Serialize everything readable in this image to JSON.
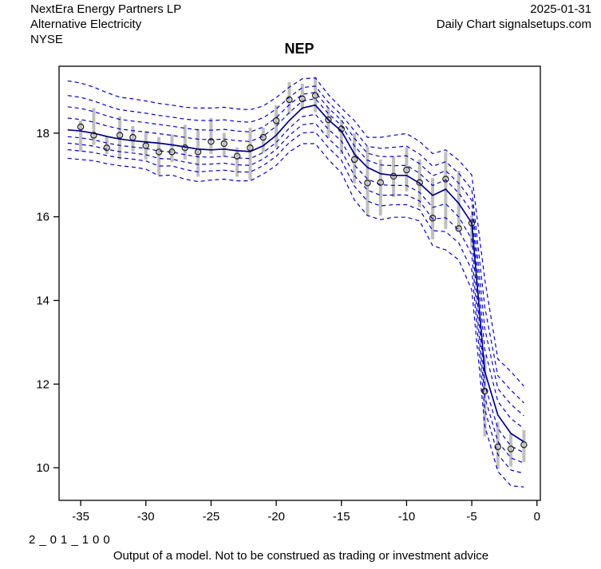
{
  "header": {
    "company": "NextEra Energy Partners LP",
    "industry": "Alternative Electricity",
    "exchange": "NYSE",
    "date": "2025-01-31",
    "source": "Daily Chart signalsetups.com"
  },
  "title": "NEP",
  "footer": {
    "model_id": "2_01_100",
    "disclaimer": "Output of a model. Not to be construed as trading or investment advice"
  },
  "chart_data": {
    "type": "line",
    "title": "NEP",
    "xlabel": "",
    "ylabel": "",
    "x_ticks": [
      -35,
      -30,
      -25,
      -20,
      -15,
      -10,
      -5,
      0
    ],
    "y_ticks": [
      10,
      12,
      14,
      16,
      18
    ],
    "xlim": [
      -36.66,
      0.26
    ],
    "ylim": [
      9.22,
      19.6
    ],
    "grid": false,
    "legend_position": "none",
    "description": "Observed daily prices (open circles with gray high-low bars) plus model median (solid navy line) and eight dashed blue decile band lines (4 above, 4 below the median).",
    "band_fractions": [
      0.24,
      0.47,
      0.7,
      1.0
    ],
    "colors": {
      "median_line": "#00008b",
      "band_lines": "#0000cc",
      "range_bars": "#bfbfbf",
      "points": "#1a1a1a",
      "frame": "#000000"
    },
    "days": [
      -36,
      -35,
      -34,
      -33,
      -32,
      -31,
      -30,
      -29,
      -28,
      -27,
      -26,
      -25,
      -24,
      -23,
      -22,
      -21,
      -20,
      -19,
      -18,
      -17,
      -16,
      -15,
      -14,
      -13,
      -12,
      -11,
      -10,
      -9,
      -8,
      -7,
      -6,
      -5,
      -4,
      -3,
      -2,
      -1
    ],
    "observed_close": [
      null,
      18.15,
      17.95,
      17.65,
      17.95,
      17.9,
      17.7,
      17.55,
      17.55,
      17.65,
      17.55,
      17.8,
      17.75,
      17.45,
      17.65,
      17.9,
      18.3,
      18.8,
      18.82,
      18.9,
      18.32,
      18.1,
      17.37,
      16.81,
      16.82,
      16.97,
      17.12,
      16.82,
      15.97,
      16.9,
      15.72,
      15.85,
      11.83,
      10.5,
      10.45,
      10.55
    ],
    "range_high": [
      null,
      18.3,
      18.6,
      17.92,
      18.4,
      18.17,
      18.05,
      17.91,
      17.97,
      18.2,
      18.1,
      18.36,
      18.01,
      17.66,
      18.13,
      18.13,
      18.67,
      19.22,
      19.18,
      19.35,
      18.61,
      18.32,
      18.0,
      17.68,
      17.37,
      17.43,
      17.66,
      17.37,
      16.93,
      17.55,
      17.1,
      16.03,
      12.69,
      11.1,
      10.82,
      10.9
    ],
    "range_low": [
      null,
      17.56,
      17.72,
      17.5,
      17.37,
      17.56,
      17.37,
      16.99,
      17.31,
      17.37,
      16.96,
      17.5,
      17.43,
      16.96,
      16.89,
      17.53,
      17.66,
      18.45,
      18.55,
      18.5,
      17.89,
      17.5,
      16.8,
      16.03,
      16.03,
      16.47,
      16.61,
      16.23,
      15.46,
      15.71,
      15.65,
      15.27,
      10.75,
      9.98,
      10.03,
      10.13
    ],
    "model_median": [
      18.08,
      18.05,
      18.0,
      17.92,
      17.86,
      17.82,
      17.79,
      17.76,
      17.72,
      17.67,
      17.62,
      17.6,
      17.62,
      17.58,
      17.56,
      17.7,
      17.95,
      18.3,
      18.6,
      18.67,
      18.32,
      18.05,
      17.5,
      17.18,
      17.03,
      16.99,
      16.99,
      16.8,
      16.51,
      16.66,
      16.32,
      15.85,
      12.3,
      11.26,
      10.82,
      10.62
    ],
    "upper_span_q90": [
      1.17,
      1.15,
      1.1,
      1.05,
      1.0,
      1.0,
      0.98,
      0.95,
      0.95,
      0.95,
      0.98,
      1.0,
      1.0,
      1.0,
      1.0,
      0.95,
      0.9,
      0.8,
      0.7,
      0.65,
      0.6,
      0.55,
      0.8,
      0.72,
      0.87,
      0.96,
      1.0,
      1.0,
      1.0,
      0.94,
      1.03,
      1.15,
      2.2,
      1.34,
      1.48,
      1.33
    ],
    "lower_span_q10": [
      0.68,
      0.68,
      0.66,
      0.65,
      0.64,
      0.63,
      0.65,
      0.78,
      0.72,
      0.77,
      0.78,
      0.72,
      0.72,
      0.72,
      0.7,
      0.68,
      0.72,
      0.75,
      0.85,
      0.92,
      0.95,
      1.0,
      1.1,
      1.15,
      1.1,
      1.0,
      1.0,
      0.9,
      1.2,
      1.45,
      1.35,
      1.6,
      1.3,
      1.35,
      1.25,
      1.08
    ]
  }
}
